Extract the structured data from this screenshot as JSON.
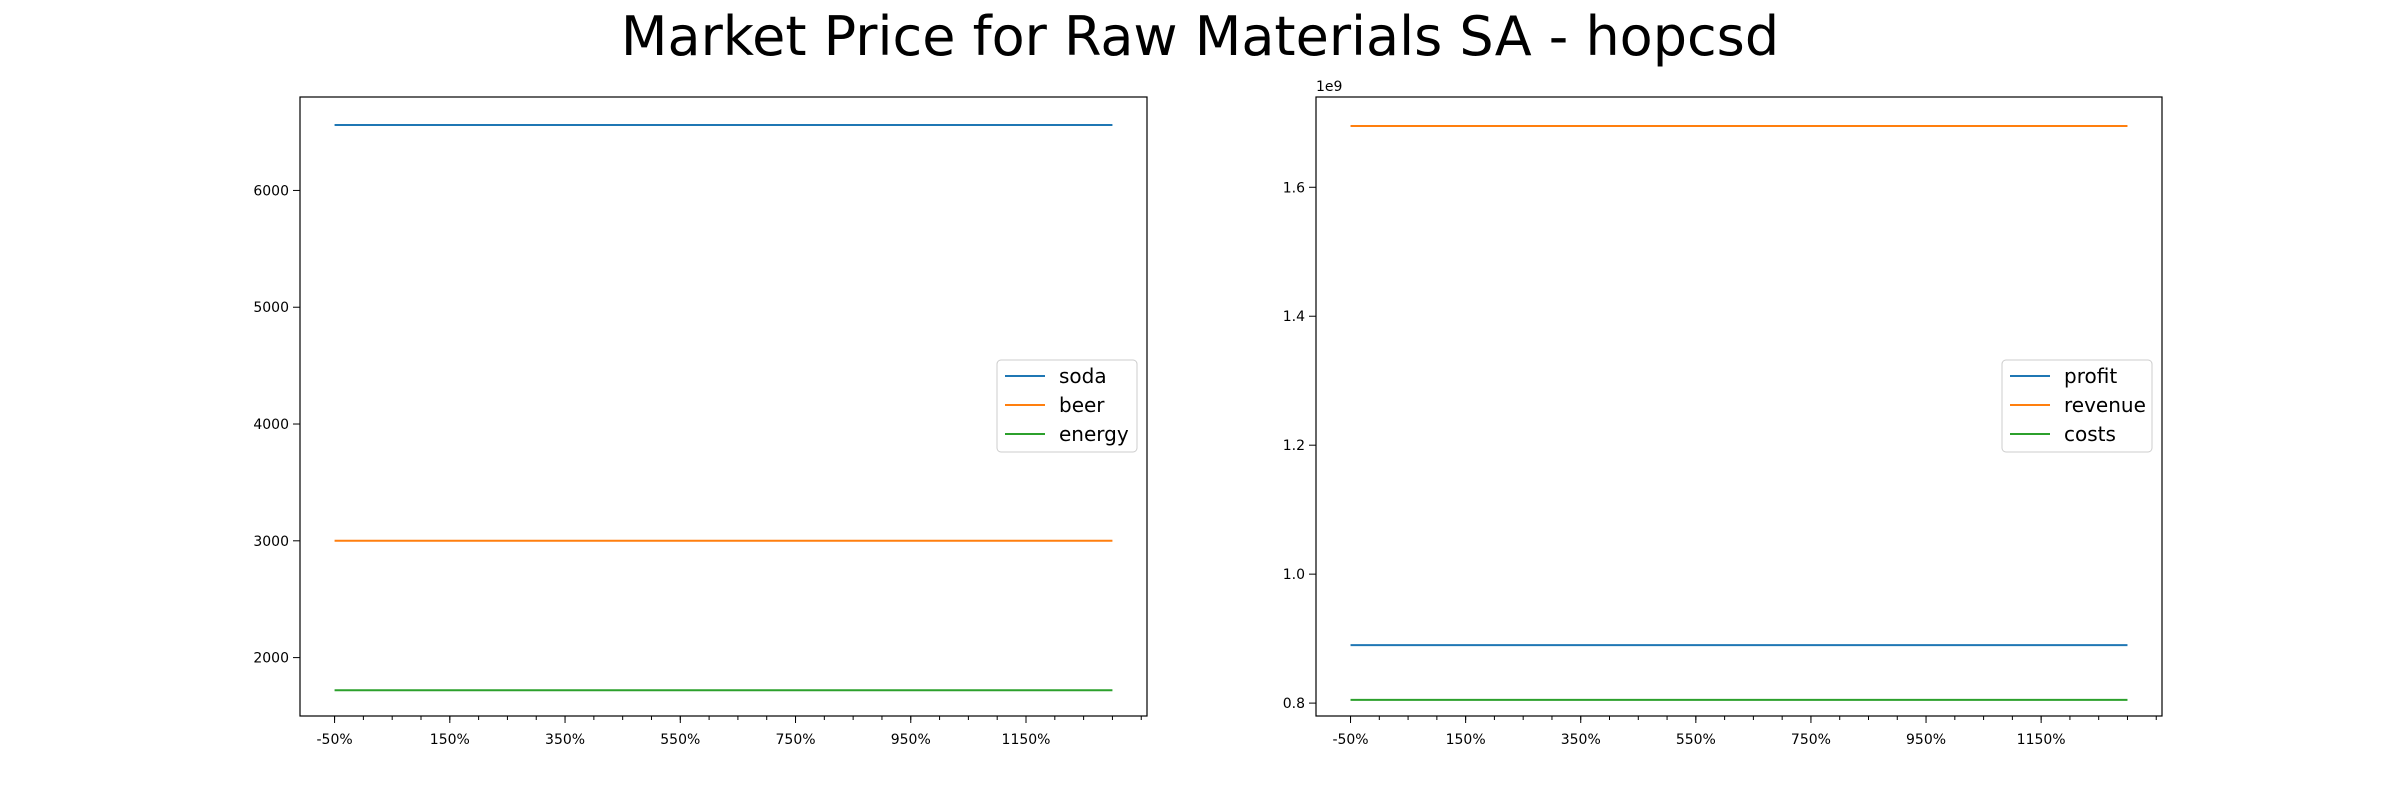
{
  "title": "Market Price for Raw Materials SA - hopcsd",
  "chart_data": [
    {
      "type": "line",
      "x": [
        -50,
        1300
      ],
      "x_ticks": [
        -50,
        150,
        350,
        550,
        750,
        950,
        1150
      ],
      "x_tick_labels": [
        "-50%",
        "150%",
        "350%",
        "550%",
        "750%",
        "950%",
        "1150%"
      ],
      "xlim": [
        -110,
        1360
      ],
      "ylim": [
        1500,
        6800
      ],
      "y_ticks": [
        2000,
        3000,
        4000,
        5000,
        6000
      ],
      "y_tick_labels": [
        "2000",
        "3000",
        "4000",
        "5000",
        "6000"
      ],
      "y_offset_label": "",
      "legend_position": "center-right",
      "grid": false,
      "series": [
        {
          "name": "soda",
          "color": "#1f77b4",
          "values": [
            6560,
            6560
          ]
        },
        {
          "name": "beer",
          "color": "#ff7f0e",
          "values": [
            3000,
            3000
          ]
        },
        {
          "name": "energy",
          "color": "#2ca02c",
          "values": [
            1720,
            1720
          ]
        }
      ]
    },
    {
      "type": "line",
      "x": [
        -50,
        1300
      ],
      "x_ticks": [
        -50,
        150,
        350,
        550,
        750,
        950,
        1150
      ],
      "x_tick_labels": [
        "-50%",
        "150%",
        "350%",
        "550%",
        "750%",
        "950%",
        "1150%"
      ],
      "xlim": [
        -110,
        1360
      ],
      "ylim": [
        0.78,
        1.74
      ],
      "y_ticks": [
        0.8,
        1.0,
        1.2,
        1.4,
        1.6
      ],
      "y_tick_labels": [
        "0.8",
        "1.0",
        "1.2",
        "1.4",
        "1.6"
      ],
      "y_offset_label": "1e9",
      "legend_position": "center-right",
      "grid": false,
      "series": [
        {
          "name": "profit",
          "color": "#1f77b4",
          "values": [
            0.89,
            0.89
          ]
        },
        {
          "name": "revenue",
          "color": "#ff7f0e",
          "values": [
            1.695,
            1.695
          ]
        },
        {
          "name": "costs",
          "color": "#2ca02c",
          "values": [
            0.805,
            0.805
          ]
        }
      ]
    }
  ]
}
